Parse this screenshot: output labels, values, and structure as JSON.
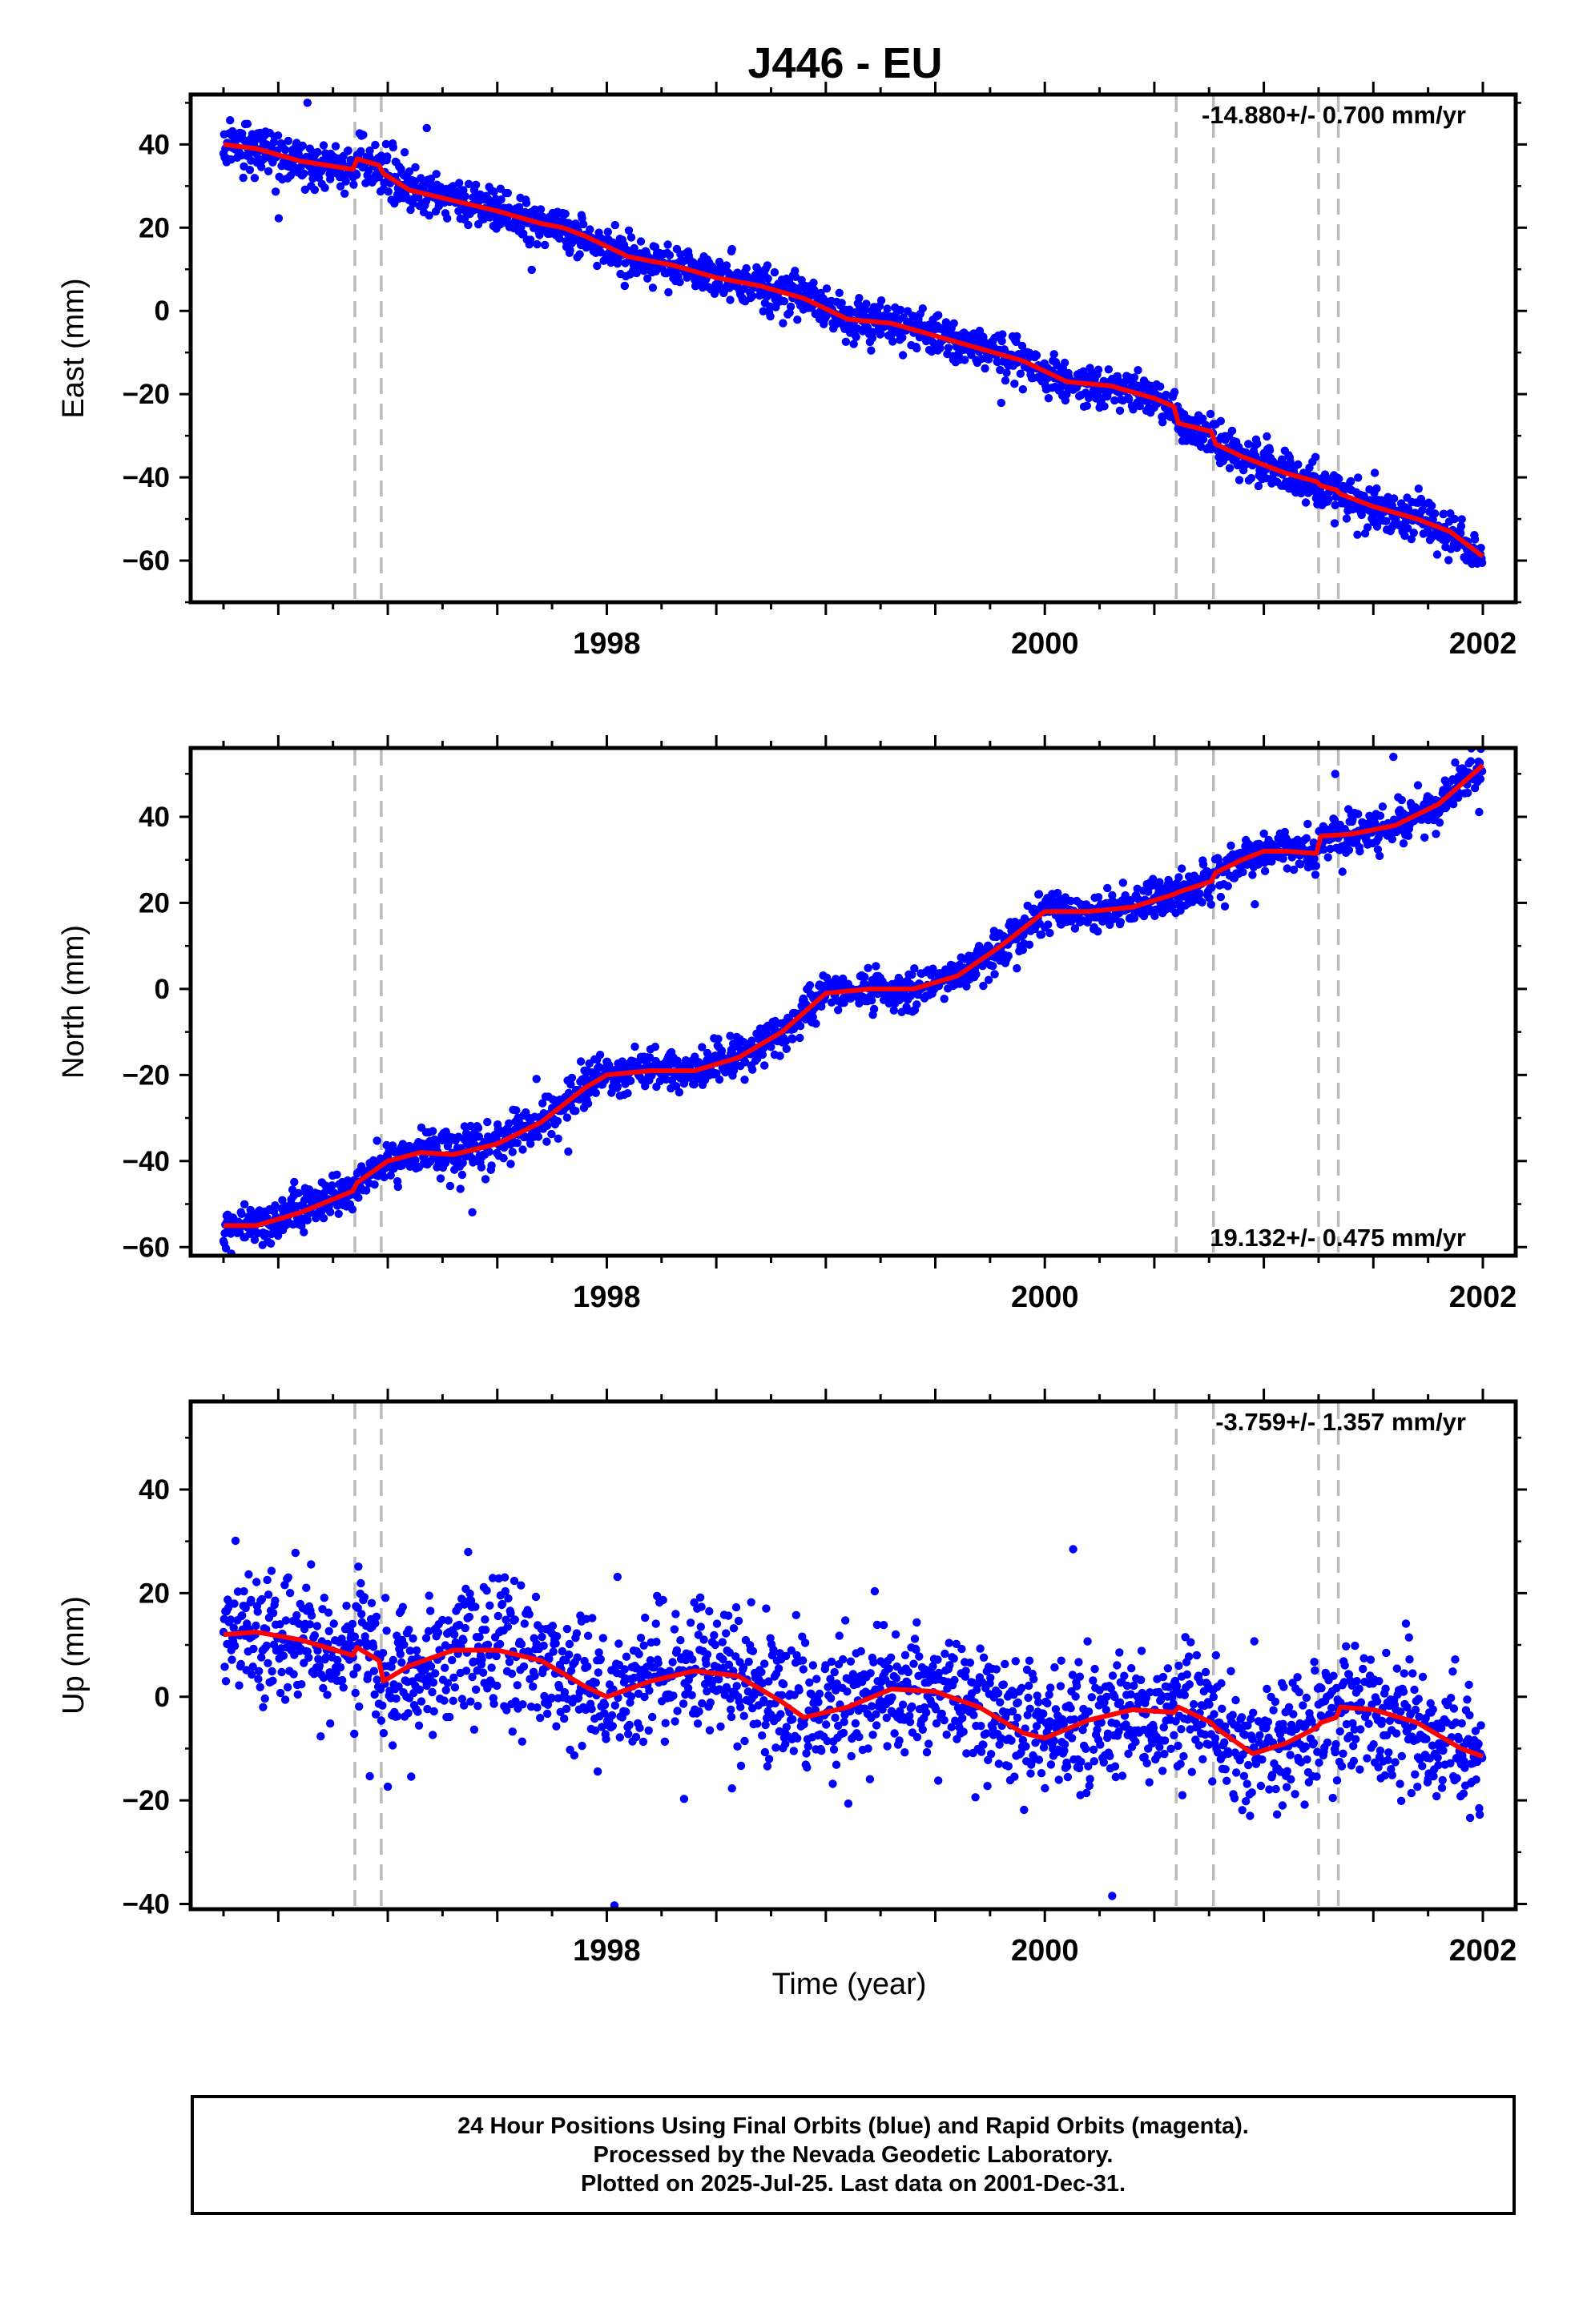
{
  "title": "J446 - EU",
  "xlabel": "Time (year)",
  "colors": {
    "data": "#0000ff",
    "model": "#ff0000",
    "steps": "#bbbbbb",
    "frame": "#000000"
  },
  "caption": [
    "24 Hour Positions Using Final Orbits (blue) and Rapid Orbits (magenta).",
    "Processed by the Nevada Geodetic Laboratory.",
    "Plotted on 2025-Jul-25. Last data on 2001-Dec-31."
  ],
  "chart_data": [
    {
      "type": "scatter",
      "ylabel": "East (mm)",
      "rate_label": "-14.880+/- 0.700 mm/yr",
      "rate_label_position": "top-right",
      "xlim": [
        1996.1,
        2002.15
      ],
      "ylim": [
        -70,
        52
      ],
      "xticks": [
        1998,
        2000,
        2002
      ],
      "yticks": [
        -60,
        -40,
        -20,
        0,
        20,
        40
      ],
      "step_epochs": [
        1996.85,
        1996.97,
        2000.6,
        2000.77,
        2001.25,
        2001.34
      ],
      "model_line": {
        "x": [
          1996.25,
          1996.4,
          1996.6,
          1996.84,
          1996.86,
          1996.96,
          1996.98,
          1997.1,
          1997.3,
          1997.5,
          1997.7,
          1997.8,
          1997.9,
          1998.1,
          1998.3,
          1998.5,
          1998.7,
          1998.9,
          1999.1,
          1999.3,
          1999.5,
          1999.7,
          1999.9,
          2000.1,
          2000.3,
          2000.5,
          2000.59,
          2000.61,
          2000.76,
          2000.78,
          2000.9,
          2001.1,
          2001.24,
          2001.26,
          2001.33,
          2001.35,
          2001.5,
          2001.7,
          2001.85,
          2002.0
        ],
        "y": [
          40,
          39,
          36,
          34,
          36.5,
          35,
          33,
          29,
          26.5,
          24,
          21,
          20,
          18,
          13,
          11,
          8,
          6,
          3,
          -2,
          -3,
          -6,
          -9,
          -12,
          -17,
          -18,
          -21,
          -23,
          -27,
          -29,
          -32,
          -35,
          -39,
          -41,
          -42,
          -43,
          -44,
          -47,
          -50,
          -53,
          -59
        ]
      },
      "points": {
        "description": "daily positions, approx. 2000 points, scatter about model line",
        "x_range": [
          1996.25,
          2001.997
        ],
        "scatter_mm": 2.5,
        "seed": 11
      }
    },
    {
      "type": "scatter",
      "ylabel": "North (mm)",
      "rate_label": "19.132+/- 0.475 mm/yr",
      "rate_label_position": "bottom-right",
      "xlim": [
        1996.1,
        2002.15
      ],
      "ylim": [
        -62,
        56
      ],
      "xticks": [
        1998,
        2000,
        2002
      ],
      "yticks": [
        -60,
        -40,
        -20,
        0,
        20,
        40
      ],
      "step_epochs": [
        1996.85,
        1996.97,
        2000.6,
        2000.77,
        2001.25,
        2001.34
      ],
      "model_line": {
        "x": [
          1996.25,
          1996.4,
          1996.6,
          1996.84,
          1996.86,
          1997.0,
          1997.15,
          1997.3,
          1997.5,
          1997.7,
          1997.9,
          1998.0,
          1998.2,
          1998.4,
          1998.6,
          1998.8,
          1999.0,
          1999.2,
          1999.4,
          1999.6,
          1999.8,
          2000.0,
          2000.2,
          2000.4,
          2000.59,
          2000.61,
          2000.76,
          2000.78,
          2000.9,
          2001.0,
          2001.1,
          2001.24,
          2001.26,
          2001.4,
          2001.6,
          2001.8,
          2002.0
        ],
        "y": [
          -55,
          -55,
          -52,
          -47,
          -45,
          -40,
          -38,
          -38.5,
          -36,
          -31,
          -23,
          -20,
          -19,
          -19,
          -16,
          -10,
          -1,
          0,
          0,
          3,
          10,
          18,
          18,
          19,
          22,
          22.5,
          25,
          27,
          30,
          32,
          32,
          31.5,
          35.5,
          36,
          38,
          43,
          52
        ]
      },
      "points": {
        "description": "daily positions, approx. 2000 points, scatter about model line",
        "x_range": [
          1996.25,
          2001.997
        ],
        "scatter_mm": 2.3,
        "seed": 23
      }
    },
    {
      "type": "scatter",
      "ylabel": "Up (mm)",
      "rate_label": "-3.759+/- 1.357 mm/yr",
      "rate_label_position": "top-right",
      "xlim": [
        1996.1,
        2002.15
      ],
      "ylim": [
        -41,
        57
      ],
      "xticks": [
        1998,
        2000,
        2002
      ],
      "yticks": [
        -40,
        -20,
        0,
        20,
        40
      ],
      "step_epochs": [
        1996.85,
        1996.97,
        2000.6,
        2000.77,
        2001.25,
        2001.34
      ],
      "model_line": {
        "x": [
          1996.25,
          1996.4,
          1996.6,
          1996.84,
          1996.86,
          1996.96,
          1996.98,
          1997.1,
          1997.3,
          1997.5,
          1997.7,
          1997.9,
          1998.0,
          1998.2,
          1998.4,
          1998.6,
          1998.8,
          1998.9,
          1999.1,
          1999.3,
          1999.5,
          1999.7,
          1999.9,
          2000.0,
          2000.2,
          2000.4,
          2000.59,
          2000.61,
          2000.76,
          2000.78,
          2000.95,
          2001.1,
          2001.24,
          2001.26,
          2001.33,
          2001.35,
          2001.5,
          2001.7,
          2001.9,
          2002.0
        ],
        "y": [
          12,
          12.5,
          11,
          8,
          9.5,
          7,
          3,
          6,
          9,
          9,
          7,
          2,
          0,
          3,
          5,
          4,
          -1,
          -4,
          -2,
          1.5,
          1,
          -2,
          -7,
          -8,
          -4.5,
          -2.5,
          -3,
          -2,
          -5,
          -6,
          -11,
          -9,
          -6,
          -5,
          -4,
          -2,
          -2.5,
          -5,
          -10,
          -11.5
        ]
      },
      "points": {
        "description": "daily positions, approx. 1900 points, scatter about model line",
        "x_range": [
          1996.25,
          2001.997
        ],
        "scatter_mm": 6.5,
        "seed": 37
      }
    }
  ]
}
